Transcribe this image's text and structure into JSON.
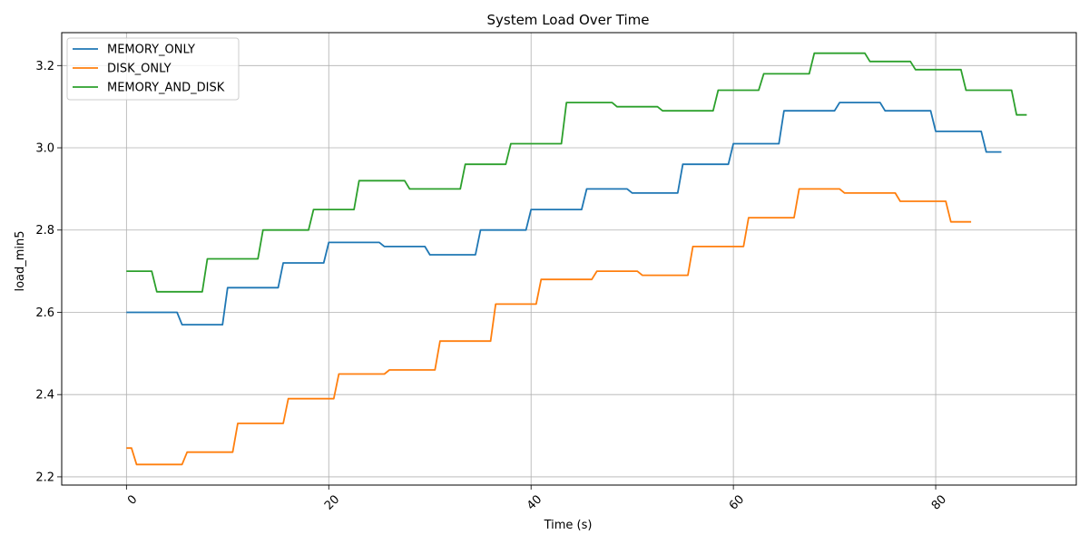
{
  "chart_data": {
    "type": "line",
    "title": "System Load Over Time",
    "xlabel": "Time (s)",
    "ylabel": "load_min5",
    "xlim": [
      -6.4,
      93.9
    ],
    "ylim": [
      2.18,
      3.28
    ],
    "xticks": [
      0,
      20,
      40,
      60,
      80
    ],
    "xtick_labels": [
      "0",
      "20",
      "40",
      "60",
      "80"
    ],
    "yticks": [
      2.2,
      2.4,
      2.6,
      2.8,
      3.0,
      3.2
    ],
    "ytick_labels": [
      "2.2",
      "2.4",
      "2.6",
      "2.8",
      "3.0",
      "3.2"
    ],
    "grid": true,
    "legend_position": "top-left",
    "series": [
      {
        "name": "MEMORY_ONLY",
        "color": "#1f77b4",
        "x": [
          0,
          5,
          5.5,
          9.5,
          10,
          15,
          15.5,
          19.5,
          20,
          25,
          25.5,
          29.5,
          30,
          34.5,
          35,
          39.5,
          40,
          45,
          45.5,
          49.5,
          50,
          54.5,
          55,
          59.5,
          60,
          64.5,
          65,
          70,
          70.5,
          74.5,
          75,
          79.5,
          80,
          84.5,
          85,
          86.5
        ],
        "y": [
          2.6,
          2.6,
          2.57,
          2.57,
          2.66,
          2.66,
          2.72,
          2.72,
          2.77,
          2.77,
          2.76,
          2.76,
          2.74,
          2.74,
          2.8,
          2.8,
          2.85,
          2.85,
          2.9,
          2.9,
          2.89,
          2.89,
          2.96,
          2.96,
          3.01,
          3.01,
          3.09,
          3.09,
          3.11,
          3.11,
          3.09,
          3.09,
          3.04,
          3.04,
          2.99,
          2.99
        ]
      },
      {
        "name": "DISK_ONLY",
        "color": "#ff7f0e",
        "x": [
          0,
          0.5,
          1,
          5.5,
          6,
          10.5,
          11,
          15.5,
          16,
          20.5,
          21,
          25.5,
          26,
          30.5,
          31,
          36,
          36.5,
          40.5,
          41,
          46,
          46.5,
          50.5,
          51,
          55.5,
          56,
          61,
          61.5,
          66,
          66.5,
          70.5,
          71,
          76,
          76.5,
          81,
          81.5,
          83.5
        ],
        "y": [
          2.27,
          2.27,
          2.23,
          2.23,
          2.26,
          2.26,
          2.33,
          2.33,
          2.39,
          2.39,
          2.45,
          2.45,
          2.46,
          2.46,
          2.53,
          2.53,
          2.62,
          2.62,
          2.68,
          2.68,
          2.7,
          2.7,
          2.69,
          2.69,
          2.76,
          2.76,
          2.83,
          2.83,
          2.9,
          2.9,
          2.89,
          2.89,
          2.87,
          2.87,
          2.82,
          2.82
        ]
      },
      {
        "name": "MEMORY_AND_DISK",
        "color": "#2ca02c",
        "x": [
          0,
          2.5,
          3,
          7.5,
          8,
          13,
          13.5,
          18,
          18.5,
          22.5,
          23,
          27.5,
          28,
          33,
          33.5,
          37.5,
          38,
          43,
          43.5,
          48,
          48.5,
          52.5,
          53,
          58,
          58.5,
          62.5,
          63,
          67.5,
          68,
          73,
          73.5,
          77.5,
          78,
          82.5,
          83,
          87.5,
          88,
          89
        ],
        "y": [
          2.7,
          2.7,
          2.65,
          2.65,
          2.73,
          2.73,
          2.8,
          2.8,
          2.85,
          2.85,
          2.92,
          2.92,
          2.9,
          2.9,
          2.96,
          2.96,
          3.01,
          3.01,
          3.11,
          3.11,
          3.1,
          3.1,
          3.09,
          3.09,
          3.14,
          3.14,
          3.18,
          3.18,
          3.23,
          3.23,
          3.21,
          3.21,
          3.19,
          3.19,
          3.14,
          3.14,
          3.08,
          3.08
        ]
      }
    ]
  }
}
